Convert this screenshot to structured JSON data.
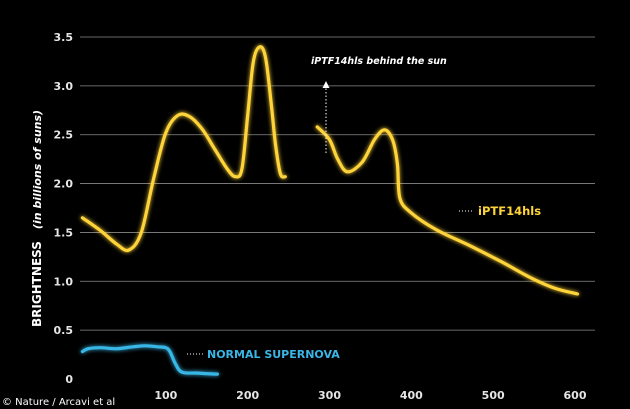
{
  "chart_data": {
    "type": "line",
    "ylabel_main": "BRIGHTNESS",
    "ylabel_sub": "(in billions of suns)",
    "xlim": [
      0,
      620
    ],
    "ylim": [
      0,
      3.5
    ],
    "x_ticks": [
      "100",
      "200",
      "300",
      "400",
      "500",
      "600"
    ],
    "y_ticks": [
      "0",
      "0.5",
      "1.0",
      "1.5",
      "2.0",
      "2.5",
      "3.0",
      "3.5"
    ],
    "grid": true,
    "annotation": "iPTF14hls behind the sun",
    "credit": "© Nature / Arcavi et al",
    "series": [
      {
        "name": "iPTF14hls",
        "color": "#ffd43a",
        "segments": [
          [
            [
              -2,
              1.65
            ],
            [
              20,
              1.52
            ],
            [
              40,
              1.38
            ],
            [
              55,
              1.32
            ],
            [
              70,
              1.5
            ],
            [
              85,
              2.05
            ],
            [
              100,
              2.52
            ],
            [
              115,
              2.7
            ],
            [
              130,
              2.68
            ],
            [
              145,
              2.55
            ],
            [
              160,
              2.35
            ],
            [
              175,
              2.15
            ],
            [
              185,
              2.07
            ],
            [
              193,
              2.15
            ],
            [
              200,
              2.7
            ],
            [
              207,
              3.25
            ],
            [
              215,
              3.4
            ],
            [
              222,
              3.28
            ],
            [
              229,
              2.8
            ],
            [
              234,
              2.4
            ],
            [
              240,
              2.1
            ],
            [
              246,
              2.07
            ]
          ],
          [
            [
              285,
              2.58
            ],
            [
              300,
              2.45
            ],
            [
              310,
              2.25
            ],
            [
              322,
              2.12
            ],
            [
              340,
              2.22
            ],
            [
              355,
              2.45
            ],
            [
              367,
              2.55
            ],
            [
              377,
              2.45
            ],
            [
              383,
              2.2
            ],
            [
              386,
              1.85
            ],
            [
              400,
              1.7
            ],
            [
              430,
              1.53
            ],
            [
              470,
              1.37
            ],
            [
              510,
              1.2
            ],
            [
              545,
              1.04
            ],
            [
              575,
              0.93
            ],
            [
              603,
              0.87
            ]
          ]
        ]
      },
      {
        "name": "NORMAL SUPERNOVA",
        "color": "#39b6e6",
        "segments": [
          [
            [
              -2,
              0.28
            ],
            [
              5,
              0.31
            ],
            [
              20,
              0.32
            ],
            [
              40,
              0.31
            ],
            [
              60,
              0.33
            ],
            [
              75,
              0.34
            ],
            [
              90,
              0.33
            ],
            [
              100,
              0.32
            ],
            [
              105,
              0.28
            ],
            [
              112,
              0.15
            ],
            [
              120,
              0.07
            ],
            [
              140,
              0.06
            ],
            [
              163,
              0.05
            ]
          ]
        ]
      }
    ]
  }
}
